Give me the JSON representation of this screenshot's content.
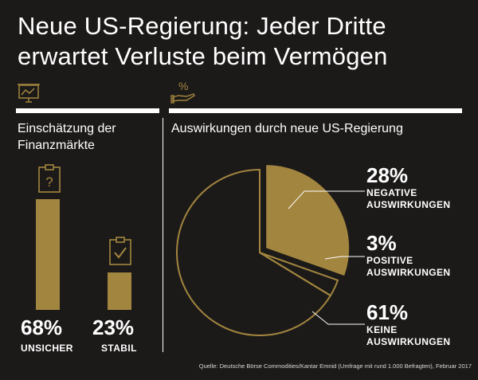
{
  "title": {
    "line1": "Neue US-Regierung: Jeder Dritte",
    "line2": "erwartet Verluste beim Vermögen"
  },
  "icons": {
    "left": "chart-board-icon",
    "right": "percent-hand-icon",
    "unsure": "clipboard-question-icon",
    "stable": "clipboard-check-icon"
  },
  "colors": {
    "background": "#1c1a19",
    "gold": "#a2853e",
    "white": "#ffffff"
  },
  "left_section": {
    "title_line1": "Einschätzung der",
    "title_line2": "Finanzmärkte"
  },
  "right_section": {
    "title": "Auswirkungen durch neue US-Regierung"
  },
  "source": "Quelle: Deutsche Börse Commodities/Kantar Emnid (Umfrage mit rund 1.000 Befragten), Februar 2017",
  "chart_data": [
    {
      "type": "bar",
      "categories": [
        "UNSICHER",
        "STABIL"
      ],
      "values": [
        68,
        23
      ],
      "value_labels": [
        "68%",
        "23%"
      ],
      "ylim": [
        0,
        100
      ]
    },
    {
      "type": "pie",
      "slices": [
        {
          "value": 28,
          "pct_label": "28%",
          "line1": "NEGATIVE",
          "line2": "AUSWIRKUNGEN",
          "style": "filled",
          "exploded": true
        },
        {
          "value": 3,
          "pct_label": "3%",
          "line1": "POSITIVE",
          "line2": "AUSWIRKUNGEN",
          "style": "outline"
        },
        {
          "value": 61,
          "pct_label": "61%",
          "line1": "KEINE",
          "line2": "AUSWIRKUNGEN",
          "style": "outline"
        }
      ]
    }
  ]
}
